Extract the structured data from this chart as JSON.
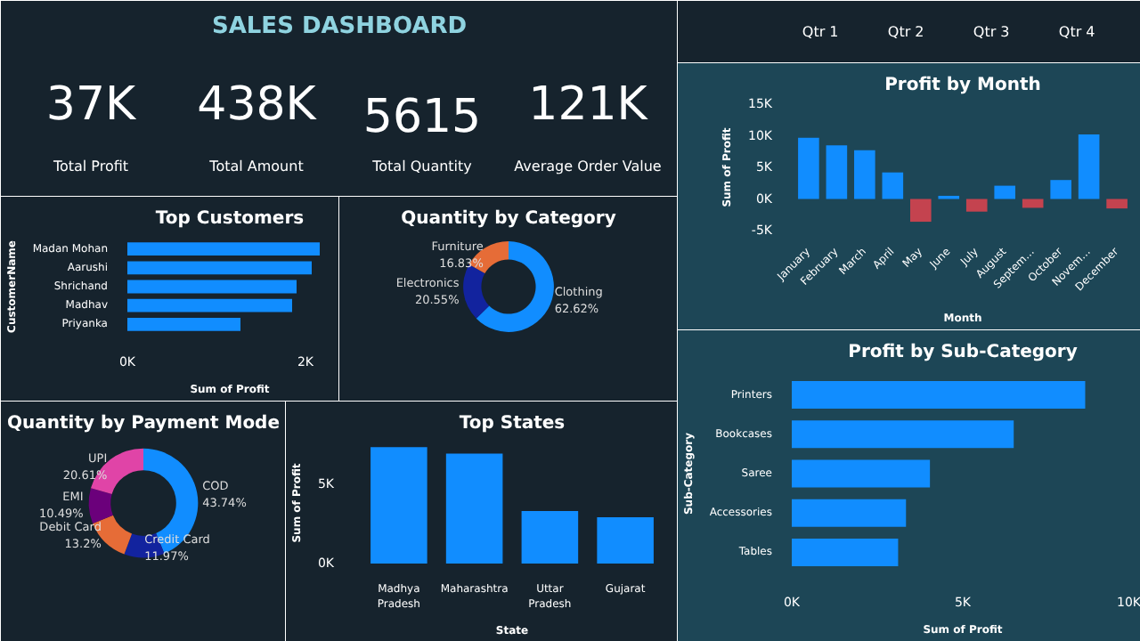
{
  "chart_data": [
    {
      "type": "other",
      "title": "SALES DASHBOARD",
      "annotations": [
        "37K",
        "Total Profit",
        "438K",
        "Total Amount",
        "5615",
        "Total Quantity",
        "121K",
        "Average Order Value"
      ]
    },
    {
      "type": "bar",
      "title": "Top Customers",
      "orientation": "horizontal",
      "categories": [
        "Madan Mohan",
        "Aarushi",
        "Shrichand",
        "Madhav",
        "Priyanka"
      ],
      "values": [
        2160,
        2070,
        1900,
        1850,
        1270
      ],
      "color": "#118dff",
      "xlim": [
        0,
        2300
      ],
      "xticks": [
        {
          "value": 0,
          "label": "0K"
        },
        {
          "value": 2000,
          "label": "2K"
        }
      ],
      "xlabel": "Sum of Profit",
      "ylabel": "CustomerName"
    },
    {
      "type": "donut",
      "title": "Quantity by Category",
      "categories": [
        "Clothing",
        "Electronics",
        "Furniture"
      ],
      "values": [
        62.62,
        20.55,
        16.83
      ],
      "value_labels": [
        "62.62%",
        "20.55%",
        "16.83%"
      ],
      "colors": [
        "#118dff",
        "#12239e",
        "#e66c37"
      ]
    },
    {
      "type": "donut",
      "title": "Quantity by Payment Mode",
      "categories": [
        "COD",
        "Credit Card",
        "Debit Card",
        "EMI",
        "UPI"
      ],
      "values": [
        43.74,
        11.97,
        13.2,
        10.49,
        20.61
      ],
      "value_labels": [
        "43.74%",
        "11.97%",
        "13.2%",
        "10.49%",
        "20.61%"
      ],
      "colors": [
        "#118dff",
        "#12239e",
        "#e66c37",
        "#6b007b",
        "#e044a7"
      ]
    },
    {
      "type": "bar",
      "title": "Top States",
      "categories": [
        "Madhya Pradesh",
        "Maharashtra",
        "Uttar Pradesh",
        "Gujarat"
      ],
      "values": [
        7300,
        6900,
        3300,
        2900
      ],
      "color": "#118dff",
      "ylim": [
        0,
        7600
      ],
      "yticks": [
        {
          "value": 0,
          "label": "0K"
        },
        {
          "value": 5000,
          "label": "5K"
        }
      ],
      "xlabel": "State",
      "ylabel": "Sum of Profit"
    },
    {
      "type": "other",
      "annotations": [
        "Qtr 1",
        "Qtr 2",
        "Qtr 3",
        "Qtr 4"
      ]
    },
    {
      "type": "bar",
      "title": "Profit by Month",
      "categories": [
        "January",
        "February",
        "March",
        "April",
        "May",
        "June",
        "July",
        "August",
        "Septem…",
        "October",
        "Novem…",
        "December"
      ],
      "values": [
        9700,
        8500,
        7700,
        4200,
        -3600,
        500,
        -2000,
        2100,
        -1400,
        3000,
        10200,
        -1500
      ],
      "colors": [
        "#118dff",
        "#118dff",
        "#118dff",
        "#118dff",
        "#c4434f",
        "#118dff",
        "#c4434f",
        "#118dff",
        "#c4434f",
        "#118dff",
        "#118dff",
        "#c4434f"
      ],
      "ylim": [
        -5000,
        15000
      ],
      "yticks": [
        {
          "value": -5000,
          "label": "-5K"
        },
        {
          "value": 0,
          "label": "0K"
        },
        {
          "value": 5000,
          "label": "5K"
        },
        {
          "value": 10000,
          "label": "10K"
        },
        {
          "value": 15000,
          "label": "15K"
        }
      ],
      "xlabel": "Month",
      "ylabel": "Sum of Profit"
    },
    {
      "type": "bar",
      "title": "Profit by Sub-Category",
      "orientation": "horizontal",
      "categories": [
        "Printers",
        "Bookcases",
        "Saree",
        "Accessories",
        "Tables"
      ],
      "values": [
        8580,
        6490,
        4040,
        3340,
        3110
      ],
      "color": "#118dff",
      "xlim": [
        0,
        10000
      ],
      "xticks": [
        {
          "value": 0,
          "label": "0K"
        },
        {
          "value": 5000,
          "label": "5K"
        },
        {
          "value": 10000,
          "label": "10K"
        }
      ],
      "xlabel": "Sum of Profit",
      "ylabel": "Sub-Category"
    }
  ]
}
